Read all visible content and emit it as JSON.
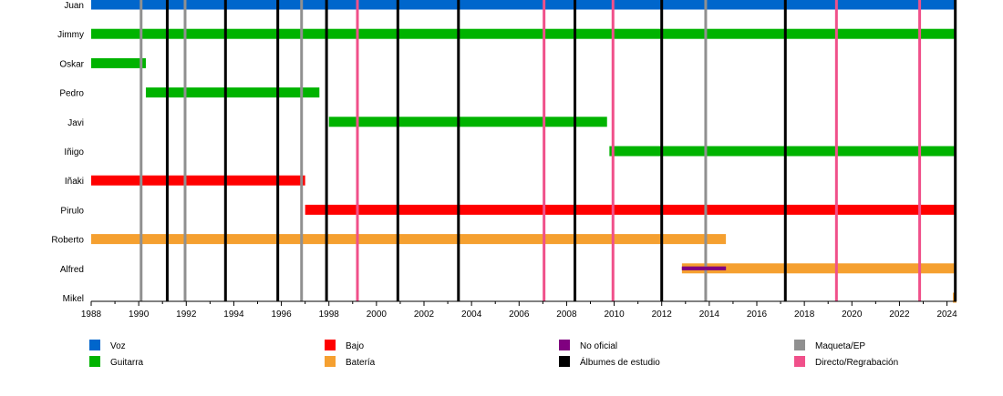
{
  "chart_data": {
    "type": "timeline",
    "x_range": [
      1988,
      2024.4
    ],
    "x_ticks": [
      "1988",
      "1990",
      "1992",
      "1994",
      "1996",
      "1998",
      "2000",
      "2002",
      "2004",
      "2006",
      "2008",
      "2010",
      "2012",
      "2014",
      "2016",
      "2018",
      "2020",
      "2022",
      "2024"
    ],
    "members": [
      "Juan",
      "Jimmy",
      "Oskar",
      "Pedro",
      "Javi",
      "Iñigo",
      "Iñaki",
      "Pirulo",
      "Roberto",
      "Alfred",
      "Mikel"
    ],
    "roles": {
      "voz": {
        "label": "Voz",
        "color": "#0066cc"
      },
      "guitarra": {
        "label": "Guitarra",
        "color": "#00b300"
      },
      "bajo": {
        "label": "Bajo",
        "color": "#ff0000"
      },
      "bateria": {
        "label": "Batería",
        "color": "#f5a030"
      },
      "no_oficial": {
        "label": "No oficial",
        "color": "#800080"
      }
    },
    "bars": [
      {
        "member": "Juan",
        "role": "voz",
        "start": 1988.0,
        "end": 2024.4
      },
      {
        "member": "Jimmy",
        "role": "guitarra",
        "start": 1988.0,
        "end": 2024.4
      },
      {
        "member": "Oskar",
        "role": "guitarra",
        "start": 1988.0,
        "end": 1990.3
      },
      {
        "member": "Pedro",
        "role": "guitarra",
        "start": 1990.3,
        "end": 1997.6
      },
      {
        "member": "Javi",
        "role": "guitarra",
        "start": 1998.0,
        "end": 2009.7
      },
      {
        "member": "Iñigo",
        "role": "guitarra",
        "start": 2009.8,
        "end": 2024.4
      },
      {
        "member": "Iñaki",
        "role": "bajo",
        "start": 1988.0,
        "end": 1997.0
      },
      {
        "member": "Pirulo",
        "role": "bajo",
        "start": 1997.0,
        "end": 2024.4
      },
      {
        "member": "Roberto",
        "role": "bateria",
        "start": 1988.0,
        "end": 2014.7
      },
      {
        "member": "Alfred",
        "role": "bateria",
        "start": 2012.85,
        "end": 2024.3
      },
      {
        "member": "Alfred",
        "role": "no_oficial",
        "start": 2012.85,
        "end": 2014.7,
        "thin": true
      },
      {
        "member": "Mikel",
        "role": "bateria",
        "start": 2024.25,
        "end": 2024.4
      }
    ],
    "event_lines": [
      {
        "type": "maqueta",
        "year": 1990.1
      },
      {
        "type": "maqueta",
        "year": 1991.95
      },
      {
        "type": "maqueta",
        "year": 1996.85
      },
      {
        "type": "maqueta",
        "year": 2013.85
      },
      {
        "type": "album",
        "year": 1991.2
      },
      {
        "type": "album",
        "year": 1993.65
      },
      {
        "type": "album",
        "year": 1995.85
      },
      {
        "type": "album",
        "year": 1997.9
      },
      {
        "type": "album",
        "year": 2000.9
      },
      {
        "type": "album",
        "year": 2003.45
      },
      {
        "type": "album",
        "year": 2008.35
      },
      {
        "type": "album",
        "year": 2012.0
      },
      {
        "type": "album",
        "year": 2017.2
      },
      {
        "type": "album",
        "year": 2024.35
      },
      {
        "type": "directo",
        "year": 1999.2
      },
      {
        "type": "directo",
        "year": 2007.05
      },
      {
        "type": "directo",
        "year": 2009.95
      },
      {
        "type": "directo",
        "year": 2019.35
      },
      {
        "type": "directo",
        "year": 2022.85
      }
    ],
    "event_types": {
      "maqueta": {
        "label": "Maqueta/EP",
        "color": "#909090"
      },
      "album": {
        "label": "Álbumes de estudio",
        "color": "#000000"
      },
      "directo": {
        "label": "Directo/Regrabación",
        "color": "#f0508a"
      }
    },
    "legend": [
      {
        "label": "Voz",
        "color": "#0066cc"
      },
      {
        "label": "Guitarra",
        "color": "#00b300"
      },
      {
        "label": "Bajo",
        "color": "#ff0000"
      },
      {
        "label": "Batería",
        "color": "#f5a030"
      },
      {
        "label": "No oficial",
        "color": "#800080"
      },
      {
        "label": "Álbumes de estudio",
        "color": "#000000"
      },
      {
        "label": "Maqueta/EP",
        "color": "#909090"
      },
      {
        "label": "Directo/Regrabación",
        "color": "#f0508a"
      }
    ]
  }
}
